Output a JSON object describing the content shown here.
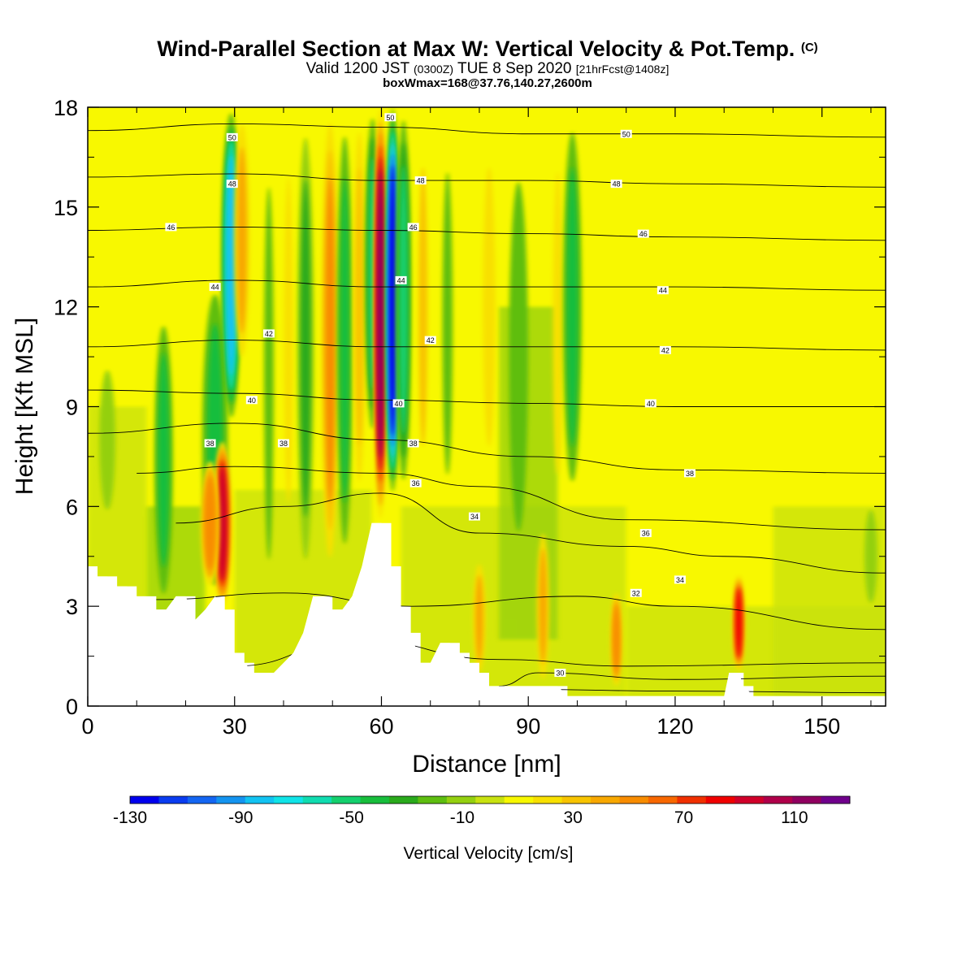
{
  "chart_data": {
    "type": "heatmap",
    "title": "Wind-Parallel Section at Max W: Vertical Velocity & Pot.Temp.",
    "title_mark": "(C)",
    "subtitle_main": "Valid 1200 JST",
    "subtitle_utc": "(0300Z)",
    "subtitle_date": "TUE 8 Sep 2020",
    "subtitle_fcst": "[21hrFcst@1408z]",
    "subtitle2": "boxWmax=168@37.76,140.27,2600m",
    "xlabel": "Distance [nm]",
    "ylabel": "Height [Kft MSL]",
    "xlim": [
      0,
      163
    ],
    "ylim": [
      0,
      18
    ],
    "x_ticks": [
      0,
      30,
      60,
      90,
      120,
      150
    ],
    "y_ticks": [
      0,
      3,
      6,
      9,
      12,
      15,
      18
    ],
    "colorbar": {
      "label": "Vertical Velocity [cm/s]",
      "min": -130,
      "max": 130,
      "tick_labels": [
        "-130",
        "-90",
        "-50",
        "-10",
        "30",
        "70",
        "110"
      ],
      "colors": [
        "#0000ee",
        "#0a3cf0",
        "#1466f2",
        "#1494f0",
        "#12c3f2",
        "#10e4e8",
        "#10dcb0",
        "#14d06e",
        "#18be3c",
        "#2aaa1c",
        "#5ebe10",
        "#94d010",
        "#c8e210",
        "#f8f800",
        "#f8e000",
        "#f8c400",
        "#f8a800",
        "#f88c00",
        "#f86800",
        "#f03000",
        "#f00000",
        "#d0002a",
        "#b0004a",
        "#900060",
        "#70008c"
      ]
    },
    "terrain": [
      [
        0,
        4.2
      ],
      [
        2,
        3.9
      ],
      [
        4,
        3.9
      ],
      [
        6,
        3.6
      ],
      [
        8,
        3.6
      ],
      [
        10,
        3.3
      ],
      [
        12,
        3.3
      ],
      [
        14,
        2.9
      ],
      [
        16,
        2.9
      ],
      [
        18,
        3.3
      ],
      [
        20,
        3.3
      ],
      [
        22,
        2.6
      ],
      [
        24,
        2.9
      ],
      [
        26,
        3.3
      ],
      [
        28,
        2.9
      ],
      [
        30,
        1.6
      ],
      [
        32,
        1.3
      ],
      [
        34,
        1.0
      ],
      [
        36,
        1.0
      ],
      [
        38,
        1.0
      ],
      [
        40,
        1.3
      ],
      [
        42,
        1.6
      ],
      [
        44,
        2.2
      ],
      [
        46,
        3.3
      ],
      [
        48,
        3.3
      ],
      [
        50,
        2.9
      ],
      [
        52,
        2.9
      ],
      [
        54,
        3.3
      ],
      [
        56,
        4.2
      ],
      [
        58,
        5.5
      ],
      [
        60,
        5.5
      ],
      [
        62,
        4.2
      ],
      [
        64,
        3.0
      ],
      [
        66,
        2.2
      ],
      [
        68,
        1.3
      ],
      [
        70,
        1.3
      ],
      [
        72,
        1.9
      ],
      [
        74,
        1.9
      ],
      [
        76,
        1.6
      ],
      [
        78,
        1.3
      ],
      [
        80,
        1.0
      ],
      [
        82,
        0.6
      ],
      [
        84,
        0.6
      ],
      [
        86,
        0.6
      ],
      [
        88,
        0.6
      ],
      [
        90,
        0.6
      ],
      [
        92,
        0.6
      ],
      [
        94,
        0.6
      ],
      [
        96,
        0.6
      ],
      [
        98,
        0.3
      ],
      [
        100,
        0.3
      ],
      [
        110,
        0.3
      ],
      [
        120,
        0.3
      ],
      [
        130,
        0.3
      ],
      [
        131,
        1.0
      ],
      [
        133,
        1.0
      ],
      [
        134,
        0.6
      ],
      [
        136,
        0.3
      ],
      [
        163,
        0.3
      ]
    ],
    "w_features": [
      {
        "x": 15.5,
        "y0": 2.8,
        "y1": 12,
        "width": 1.8,
        "value": -45
      },
      {
        "x": 26,
        "y0": 3.0,
        "y1": 13,
        "width": 2.5,
        "value": -40
      },
      {
        "x": 27.5,
        "y0": 3.0,
        "y1": 8,
        "width": 1.4,
        "value": 95
      },
      {
        "x": 25,
        "y0": 3.5,
        "y1": 7.5,
        "width": 1.6,
        "value": 55
      },
      {
        "x": 29.3,
        "y0": 8.5,
        "y1": 18,
        "width": 1.6,
        "value": -85
      },
      {
        "x": 31.5,
        "y0": 10,
        "y1": 18,
        "width": 1.5,
        "value": 40
      },
      {
        "x": 37,
        "y0": 2,
        "y1": 18,
        "width": 1.5,
        "value": -20
      },
      {
        "x": 41,
        "y0": 4,
        "y1": 18,
        "width": 1.4,
        "value": 25
      },
      {
        "x": 44.5,
        "y0": 3.5,
        "y1": 18,
        "width": 1.6,
        "value": -30
      },
      {
        "x": 49.5,
        "y0": 4,
        "y1": 18,
        "width": 1.5,
        "value": 50
      },
      {
        "x": 52.5,
        "y0": 4,
        "y1": 18,
        "width": 1.5,
        "value": -40
      },
      {
        "x": 55.5,
        "y0": 6,
        "y1": 18,
        "width": 1.2,
        "value": 35
      },
      {
        "x": 58.2,
        "y0": 8,
        "y1": 18,
        "width": 1.3,
        "value": -50
      },
      {
        "x": 59.8,
        "y0": 5.6,
        "y1": 18,
        "width": 1.0,
        "value": 110
      },
      {
        "x": 62.3,
        "y0": 6.4,
        "y1": 18,
        "width": 1.1,
        "value": -120
      },
      {
        "x": 64.5,
        "y0": 6.4,
        "y1": 18,
        "width": 1.3,
        "value": -50
      },
      {
        "x": 68.5,
        "y0": 6,
        "y1": 18,
        "width": 1.4,
        "value": 30
      },
      {
        "x": 73.5,
        "y0": 5,
        "y1": 18,
        "width": 1.6,
        "value": -20
      },
      {
        "x": 80,
        "y0": 0.8,
        "y1": 4.5,
        "width": 1.2,
        "value": 40
      },
      {
        "x": 82,
        "y0": 6,
        "y1": 18,
        "width": 2,
        "value": 25
      },
      {
        "x": 88,
        "y0": 3,
        "y1": 18,
        "width": 3,
        "value": -25
      },
      {
        "x": 93,
        "y0": 0.5,
        "y1": 5.5,
        "width": 1.2,
        "value": 40
      },
      {
        "x": 96,
        "y0": 5,
        "y1": 18,
        "width": 1.5,
        "value": 25
      },
      {
        "x": 99,
        "y0": 6,
        "y1": 18,
        "width": 1.8,
        "value": -45
      },
      {
        "x": 108,
        "y0": 0.5,
        "y1": 3.5,
        "width": 1.0,
        "value": 55
      },
      {
        "x": 133,
        "y0": 1.0,
        "y1": 4,
        "width": 1.0,
        "value": 85
      },
      {
        "x": 160,
        "y0": 2.5,
        "y1": 6.5,
        "width": 2.0,
        "value": -15
      },
      {
        "x": 4,
        "y0": 5,
        "y1": 11,
        "width": 2.5,
        "value": -15
      }
    ],
    "theta_contours": [
      {
        "value": 28,
        "points": [
          [
            90,
            0.5
          ],
          [
            120,
            0.45
          ],
          [
            163,
            0.4
          ]
        ]
      },
      {
        "value": 30,
        "points": [
          [
            84,
            0.6
          ],
          [
            92,
            1.0
          ],
          [
            120,
            0.8
          ],
          [
            163,
            0.9
          ]
        ]
      },
      {
        "value": 31,
        "points": [
          [
            30,
            1.2
          ],
          [
            55,
            2.0
          ],
          [
            84,
            1.4
          ],
          [
            110,
            1.2
          ],
          [
            163,
            1.3
          ]
        ]
      },
      {
        "value": 32,
        "points": [
          [
            14,
            3.2
          ],
          [
            40,
            3.4
          ],
          [
            66,
            3.0
          ],
          [
            100,
            3.3
          ],
          [
            120,
            3.0
          ],
          [
            163,
            2.3
          ]
        ]
      },
      {
        "value": 34,
        "points": [
          [
            18,
            5.5
          ],
          [
            40,
            6.0
          ],
          [
            60,
            6.4
          ],
          [
            80,
            5.2
          ],
          [
            110,
            4.8
          ],
          [
            130,
            4.5
          ],
          [
            163,
            4.0
          ]
        ]
      },
      {
        "value": 36,
        "points": [
          [
            10,
            7.0
          ],
          [
            30,
            7.2
          ],
          [
            60,
            7.0
          ],
          [
            80,
            6.6
          ],
          [
            110,
            5.6
          ],
          [
            163,
            5.3
          ]
        ]
      },
      {
        "value": 38,
        "points": [
          [
            0,
            8.2
          ],
          [
            30,
            8.5
          ],
          [
            60,
            8.0
          ],
          [
            90,
            7.5
          ],
          [
            120,
            7.1
          ],
          [
            163,
            7.0
          ]
        ]
      },
      {
        "value": 40,
        "points": [
          [
            0,
            9.5
          ],
          [
            30,
            9.4
          ],
          [
            60,
            9.2
          ],
          [
            90,
            9.1
          ],
          [
            120,
            9.0
          ],
          [
            163,
            9.0
          ]
        ]
      },
      {
        "value": 42,
        "points": [
          [
            0,
            10.8
          ],
          [
            30,
            11.0
          ],
          [
            60,
            10.8
          ],
          [
            90,
            10.8
          ],
          [
            120,
            10.8
          ],
          [
            163,
            10.7
          ]
        ]
      },
      {
        "value": 44,
        "points": [
          [
            0,
            12.6
          ],
          [
            30,
            12.8
          ],
          [
            60,
            12.6
          ],
          [
            90,
            12.6
          ],
          [
            120,
            12.6
          ],
          [
            163,
            12.5
          ]
        ]
      },
      {
        "value": 46,
        "points": [
          [
            0,
            14.3
          ],
          [
            30,
            14.4
          ],
          [
            60,
            14.3
          ],
          [
            90,
            14.2
          ],
          [
            120,
            14.1
          ],
          [
            163,
            14.0
          ]
        ]
      },
      {
        "value": 48,
        "points": [
          [
            0,
            15.9
          ],
          [
            30,
            16.0
          ],
          [
            60,
            15.8
          ],
          [
            90,
            15.8
          ],
          [
            120,
            15.7
          ],
          [
            163,
            15.6
          ]
        ]
      },
      {
        "value": 50,
        "points": [
          [
            0,
            17.3
          ],
          [
            30,
            17.5
          ],
          [
            60,
            17.4
          ],
          [
            90,
            17.2
          ],
          [
            120,
            17.2
          ],
          [
            163,
            17.1
          ]
        ]
      }
    ],
    "contour_labels": [
      {
        "text": "50",
        "x": 29.5,
        "y": 17.1
      },
      {
        "text": "48",
        "x": 29.5,
        "y": 15.7
      },
      {
        "text": "46",
        "x": 17,
        "y": 14.4
      },
      {
        "text": "44",
        "x": 26,
        "y": 12.6
      },
      {
        "text": "42",
        "x": 37,
        "y": 11.2
      },
      {
        "text": "40",
        "x": 33.5,
        "y": 9.2
      },
      {
        "text": "38",
        "x": 25,
        "y": 7.9
      },
      {
        "text": "38",
        "x": 40,
        "y": 7.9
      },
      {
        "text": "50",
        "x": 61.8,
        "y": 17.7
      },
      {
        "text": "48",
        "x": 68,
        "y": 15.8
      },
      {
        "text": "46",
        "x": 66.5,
        "y": 14.4
      },
      {
        "text": "44",
        "x": 64,
        "y": 12.8
      },
      {
        "text": "42",
        "x": 70,
        "y": 11.0
      },
      {
        "text": "40",
        "x": 63.5,
        "y": 9.1
      },
      {
        "text": "38",
        "x": 66.5,
        "y": 7.9
      },
      {
        "text": "36",
        "x": 67,
        "y": 6.7
      },
      {
        "text": "34",
        "x": 79,
        "y": 5.7
      },
      {
        "text": "50",
        "x": 110,
        "y": 17.2
      },
      {
        "text": "48",
        "x": 108,
        "y": 15.7
      },
      {
        "text": "46",
        "x": 113.5,
        "y": 14.2
      },
      {
        "text": "44",
        "x": 117.5,
        "y": 12.5
      },
      {
        "text": "42",
        "x": 118,
        "y": 10.7
      },
      {
        "text": "40",
        "x": 115,
        "y": 9.1
      },
      {
        "text": "38",
        "x": 123,
        "y": 7.0
      },
      {
        "text": "36",
        "x": 114,
        "y": 5.2
      },
      {
        "text": "34",
        "x": 121,
        "y": 3.8
      },
      {
        "text": "32",
        "x": 112,
        "y": 3.4
      },
      {
        "text": "30",
        "x": 96.5,
        "y": 1.0
      }
    ]
  }
}
